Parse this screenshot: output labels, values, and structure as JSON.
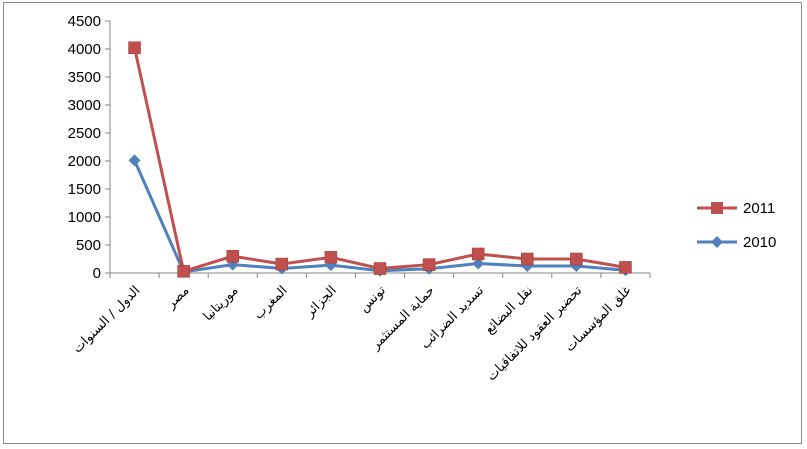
{
  "chart_data": {
    "type": "line",
    "title": "",
    "xlabel": "",
    "ylabel": "",
    "categories": [
      "الدول / السنوات",
      "مصر",
      "موريتانيا",
      "المغرب",
      "الجزائر",
      "تونس",
      "حماية المستثمر",
      "تسديد الضرائب",
      "نقل البضائع",
      "تحضير العقود للاتفاقيات",
      "غلق المؤسسات"
    ],
    "series": [
      {
        "name": "2011",
        "color": "#c0504d",
        "marker": "square",
        "values": [
          4022,
          30,
          300,
          160,
          280,
          80,
          150,
          340,
          250,
          250,
          100
        ]
      },
      {
        "name": "2010",
        "color": "#4f81bd",
        "marker": "diamond",
        "values": [
          2011,
          20,
          150,
          80,
          140,
          40,
          75,
          170,
          125,
          125,
          50
        ]
      }
    ],
    "ylim": [
      0,
      4500
    ],
    "yticks": [
      "0",
      "500",
      "1000",
      "1500",
      "2000",
      "2500",
      "3000",
      "3500",
      "4000",
      "4500"
    ],
    "grid": false,
    "legend_position": "right"
  }
}
